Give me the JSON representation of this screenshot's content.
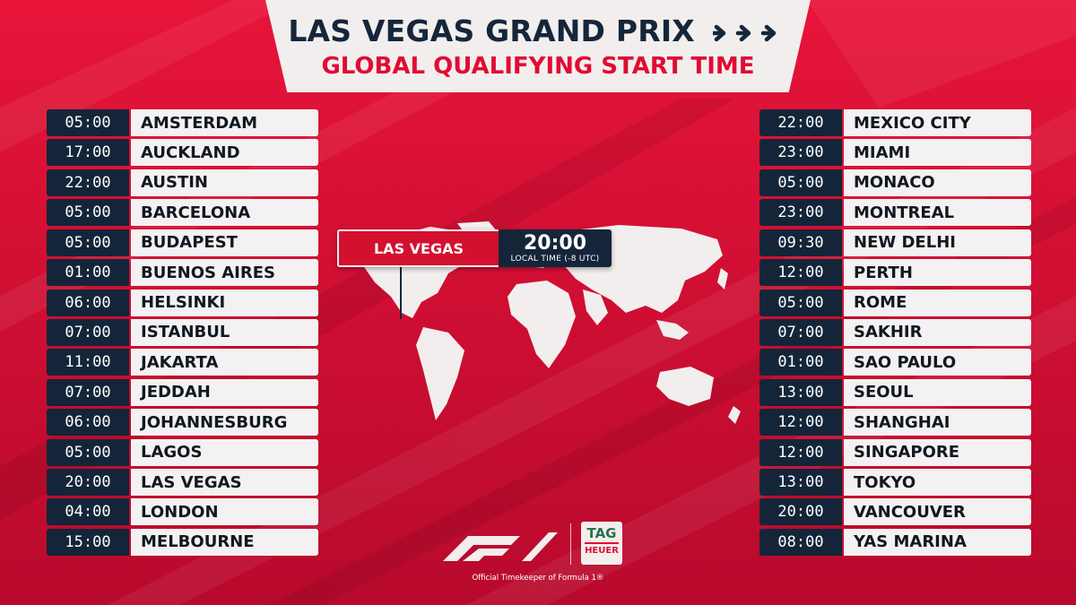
{
  "header": {
    "title": "LAS VEGAS GRAND PRIX",
    "subtitle": "GLOBAL QUALIFYING START TIME",
    "arrows_icon": "triple-chevron-right-icon"
  },
  "colors": {
    "red": "#e10b33",
    "navy": "#14253a",
    "offwhite": "#f2eeee"
  },
  "left_schedule": [
    {
      "time": "05:00",
      "city": "AMSTERDAM"
    },
    {
      "time": "17:00",
      "city": "AUCKLAND"
    },
    {
      "time": "22:00",
      "city": "AUSTIN"
    },
    {
      "time": "05:00",
      "city": "BARCELONA"
    },
    {
      "time": "05:00",
      "city": "BUDAPEST"
    },
    {
      "time": "01:00",
      "city": "BUENOS AIRES"
    },
    {
      "time": "06:00",
      "city": "HELSINKI"
    },
    {
      "time": "07:00",
      "city": "ISTANBUL"
    },
    {
      "time": "11:00",
      "city": "JAKARTA"
    },
    {
      "time": "07:00",
      "city": "JEDDAH"
    },
    {
      "time": "06:00",
      "city": "JOHANNESBURG"
    },
    {
      "time": "05:00",
      "city": "LAGOS"
    },
    {
      "time": "20:00",
      "city": "LAS VEGAS"
    },
    {
      "time": "04:00",
      "city": "LONDON"
    },
    {
      "time": "15:00",
      "city": "MELBOURNE"
    }
  ],
  "right_schedule": [
    {
      "time": "22:00",
      "city": "MEXICO CITY"
    },
    {
      "time": "23:00",
      "city": "MIAMI"
    },
    {
      "time": "05:00",
      "city": "MONACO"
    },
    {
      "time": "23:00",
      "city": "MONTREAL"
    },
    {
      "time": "09:30",
      "city": "NEW DELHI"
    },
    {
      "time": "12:00",
      "city": "PERTH"
    },
    {
      "time": "05:00",
      "city": "ROME"
    },
    {
      "time": "07:00",
      "city": "SAKHIR"
    },
    {
      "time": "01:00",
      "city": "SAO PAULO"
    },
    {
      "time": "13:00",
      "city": "SEOUL"
    },
    {
      "time": "12:00",
      "city": "SHANGHAI"
    },
    {
      "time": "12:00",
      "city": "SINGAPORE"
    },
    {
      "time": "13:00",
      "city": "TOKYO"
    },
    {
      "time": "20:00",
      "city": "VANCOUVER"
    },
    {
      "time": "08:00",
      "city": "YAS MARINA"
    }
  ],
  "callout": {
    "city": "LAS VEGAS",
    "time": "20:00",
    "note": "LOCAL TIME (-8 UTC)"
  },
  "map": {
    "icon": "world-map-icon"
  },
  "footer": {
    "f1_logo": "F1",
    "tag_top": "TAG",
    "tag_bottom": "HEUER",
    "timekeeper": "Official Timekeeper of Formula 1®"
  }
}
